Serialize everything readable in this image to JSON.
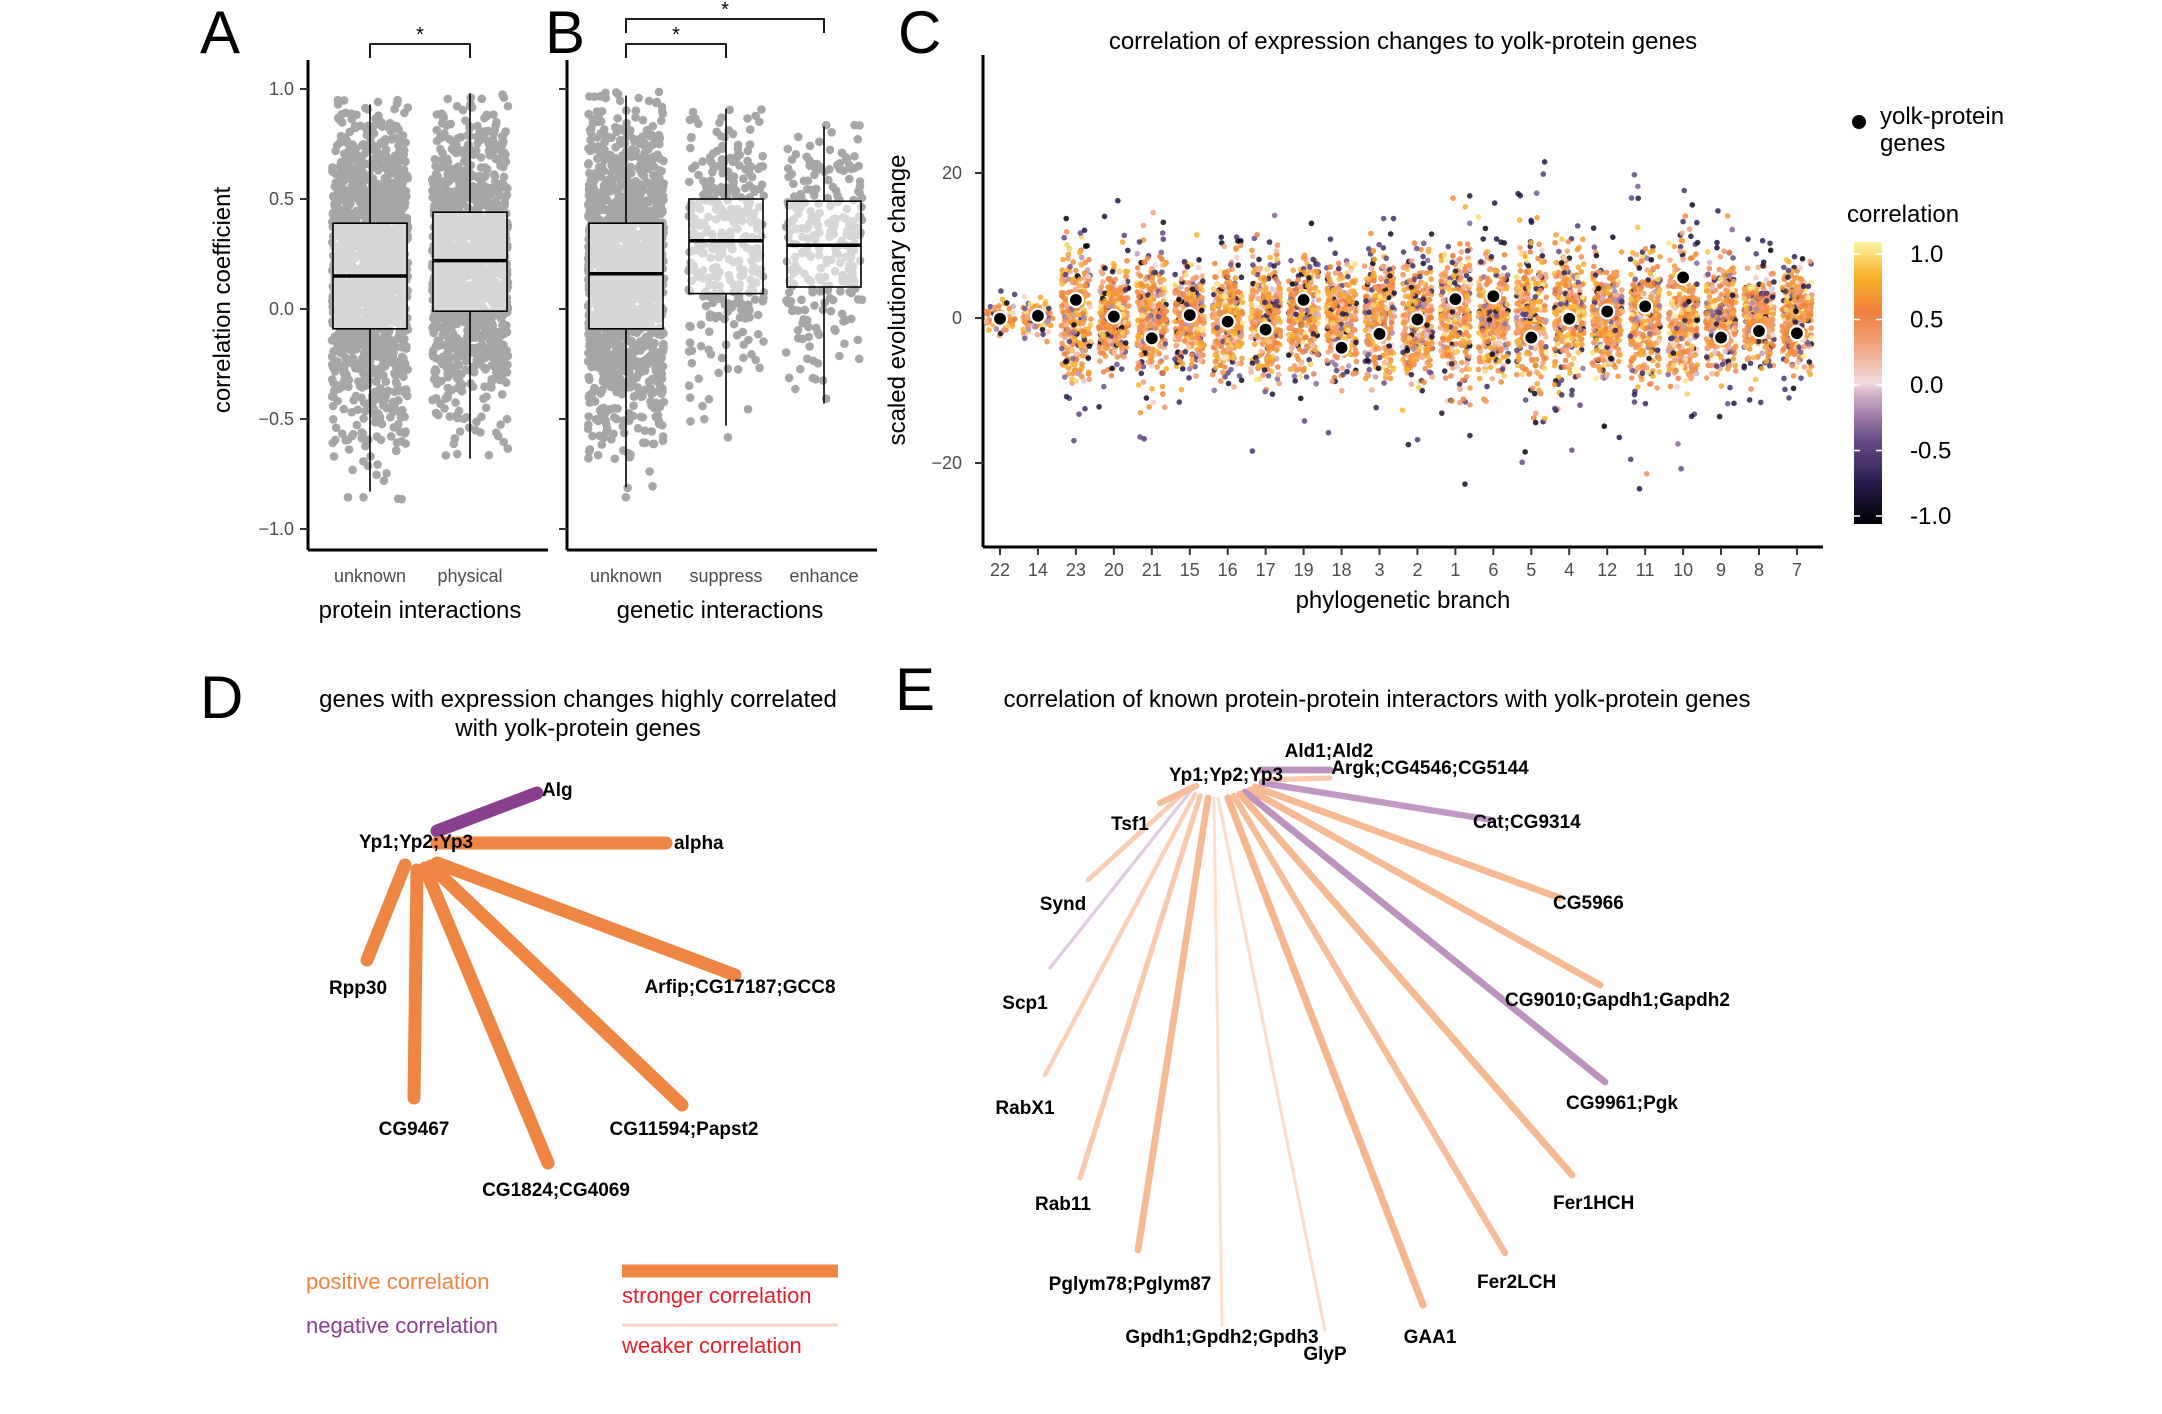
{
  "panels": {
    "a": "A",
    "b": "B",
    "c": "C",
    "d": "D",
    "e": "E"
  },
  "colors": {
    "points": "#a6a6a6",
    "positive": "#ee8543",
    "negative": "#8b3f8f",
    "legend_red": "#e8202a"
  },
  "chart_data": [
    {
      "type": "box",
      "panel": "A",
      "categories": [
        "unknown",
        "physical"
      ],
      "xlabel": "protein interactions",
      "ylabel": "correlation coefficient",
      "ylim": [
        -1.0,
        1.0
      ],
      "yticks": [
        "1.0",
        "0.5",
        "0.0",
        "−0.5",
        "−1.0"
      ],
      "boxes": [
        {
          "category": "unknown",
          "q1": -0.09,
          "median": 0.15,
          "q3": 0.39,
          "min": -0.83,
          "max": 0.93
        },
        {
          "category": "physical",
          "q1": -0.01,
          "median": 0.22,
          "q3": 0.44,
          "min": -0.68,
          "max": 0.98
        }
      ],
      "significance": [
        {
          "from": "unknown",
          "to": "physical",
          "label": "*"
        }
      ]
    },
    {
      "type": "box",
      "panel": "B",
      "categories": [
        "unknown",
        "suppress",
        "enhance"
      ],
      "xlabel": "genetic interactions",
      "ylabel": "",
      "ylim": [
        -1.0,
        1.0
      ],
      "boxes": [
        {
          "category": "unknown",
          "q1": -0.09,
          "median": 0.16,
          "q3": 0.39,
          "min": -0.81,
          "max": 0.97
        },
        {
          "category": "suppress",
          "q1": 0.07,
          "median": 0.31,
          "q3": 0.5,
          "min": -0.53,
          "max": 0.91
        },
        {
          "category": "enhance",
          "q1": 0.1,
          "median": 0.29,
          "q3": 0.49,
          "min": -0.43,
          "max": 0.83
        }
      ],
      "significance": [
        {
          "from": "unknown",
          "to": "suppress",
          "label": "*"
        },
        {
          "from": "unknown",
          "to": "enhance",
          "label": "*"
        }
      ]
    },
    {
      "type": "scatter",
      "panel": "C",
      "title": "correlation of expression changes to yolk-protein genes",
      "xlabel": "phylogenetic branch",
      "ylabel": "scaled evolutionary change",
      "categories": [
        "22",
        "14",
        "23",
        "20",
        "21",
        "15",
        "16",
        "17",
        "19",
        "18",
        "3",
        "2",
        "1",
        "6",
        "5",
        "4",
        "12",
        "11",
        "10",
        "9",
        "8",
        "7"
      ],
      "ylim": [
        -31,
        37
      ],
      "yticks": [
        20,
        0,
        -20
      ],
      "spread_sd": [
        1.2,
        1.5,
        5.2,
        4.6,
        5.5,
        4.0,
        4.6,
        4.5,
        4.2,
        5.0,
        4.8,
        4.7,
        5.8,
        4.6,
        6.2,
        5.2,
        4.6,
        5.6,
        5.6,
        4.6,
        3.6,
        4.2
      ],
      "yolk_protein_genes": [
        -0.1,
        0.3,
        2.5,
        0.2,
        -2.8,
        0.4,
        -0.5,
        -1.6,
        2.5,
        -4.1,
        -2.2,
        -0.2,
        2.6,
        3.0,
        -2.7,
        -0.1,
        0.9,
        1.6,
        5.6,
        -2.7,
        -1.8,
        -2.1
      ],
      "legend": {
        "marker": "yolk-protein genes",
        "colorbar_title": "correlation",
        "colorbar_ticks": [
          "1.0",
          "0.5",
          "0.0",
          "-0.5",
          "-1.0"
        ],
        "colorbar_range": [
          -1.0,
          1.0
        ]
      }
    }
  ],
  "panel_d": {
    "title_line1": "genes with expression changes highly correlated",
    "title_line2": "with yolk-protein genes",
    "center": "Yp1;Yp2;Yp3",
    "edges": [
      {
        "target": "Alg",
        "sign": "negative",
        "strength": 1.0
      },
      {
        "target": "alpha",
        "sign": "positive",
        "strength": 1.0
      },
      {
        "target": "Rpp30",
        "sign": "positive",
        "strength": 1.0
      },
      {
        "target": "Arfip;CG17187;GCC8",
        "sign": "positive",
        "strength": 1.0
      },
      {
        "target": "CG9467",
        "sign": "positive",
        "strength": 1.0
      },
      {
        "target": "CG11594;Papst2",
        "sign": "positive",
        "strength": 1.0
      },
      {
        "target": "CG1824;CG4069",
        "sign": "positive",
        "strength": 1.0
      }
    ],
    "legend": {
      "positive": "positive correlation",
      "negative": "negative correlation",
      "stronger": "stronger correlation",
      "weaker": "weaker correlation"
    }
  },
  "panel_e": {
    "title": "correlation of known protein-protein interactors with yolk-protein genes",
    "center": "Yp1;Yp2;Yp3",
    "edges": [
      {
        "target": "Ald1;Ald2",
        "sign": "negative",
        "strength": 0.6
      },
      {
        "target": "Argk;CG4546;CG5144",
        "sign": "positive",
        "strength": 0.4
      },
      {
        "target": "Cat;CG9314",
        "sign": "negative",
        "strength": 0.55
      },
      {
        "target": "CG5966",
        "sign": "positive",
        "strength": 0.6
      },
      {
        "target": "CG9010;Gapdh1;Gapdh2",
        "sign": "positive",
        "strength": 0.6
      },
      {
        "target": "CG9961;Pgk",
        "sign": "negative",
        "strength": 0.6
      },
      {
        "target": "Fer1HCH",
        "sign": "positive",
        "strength": 0.62
      },
      {
        "target": "Fer2LCH",
        "sign": "positive",
        "strength": 0.55
      },
      {
        "target": "GAA1",
        "sign": "positive",
        "strength": 0.65
      },
      {
        "target": "GlyP",
        "sign": "positive",
        "strength": 0.15
      },
      {
        "target": "Gpdh1;Gpdh2;Gpdh3",
        "sign": "positive",
        "strength": 0.12
      },
      {
        "target": "Pglym78;Pglym87",
        "sign": "positive",
        "strength": 0.6
      },
      {
        "target": "Rab11",
        "sign": "positive",
        "strength": 0.4
      },
      {
        "target": "RabX1",
        "sign": "positive",
        "strength": 0.3
      },
      {
        "target": "Scp1",
        "sign": "negative",
        "strength": 0.15
      },
      {
        "target": "Synd",
        "sign": "positive",
        "strength": 0.35
      },
      {
        "target": "Tsf1",
        "sign": "positive",
        "strength": 0.55
      }
    ]
  }
}
